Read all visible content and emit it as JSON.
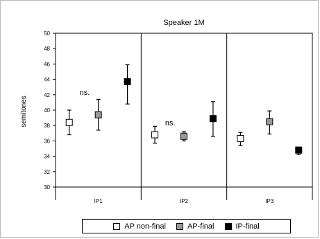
{
  "chart_data": {
    "type": "scatter",
    "title": "Speaker 1M",
    "ylabel": "semitones",
    "xlabel": "",
    "ylim": [
      30,
      50
    ],
    "ytick_step": 2,
    "categories": [
      "IP1",
      "IP2",
      "IP3"
    ],
    "series": [
      {
        "name": "AP non-final",
        "color": "#ffffff",
        "values": [
          38.4,
          36.8,
          36.3
        ],
        "error_low": [
          36.8,
          35.7,
          35.4
        ],
        "error_high": [
          40.0,
          37.9,
          37.1
        ]
      },
      {
        "name": "AP-final",
        "color": "#999999",
        "values": [
          39.4,
          36.6,
          38.5
        ],
        "error_low": [
          37.4,
          36.0,
          36.9
        ],
        "error_high": [
          41.4,
          37.2,
          39.9
        ]
      },
      {
        "name": "IP-final",
        "color": "#000000",
        "values": [
          43.7,
          38.9,
          34.8
        ],
        "error_low": [
          40.8,
          36.6,
          34.2
        ],
        "error_high": [
          45.9,
          41.1,
          35.2
        ]
      }
    ],
    "annotations": [
      {
        "text": "ns.",
        "category": "IP1"
      },
      {
        "text": "ns.",
        "category": "IP2"
      }
    ],
    "grid": false,
    "legend_position": "bottom",
    "plot_background": "#ffffff"
  }
}
